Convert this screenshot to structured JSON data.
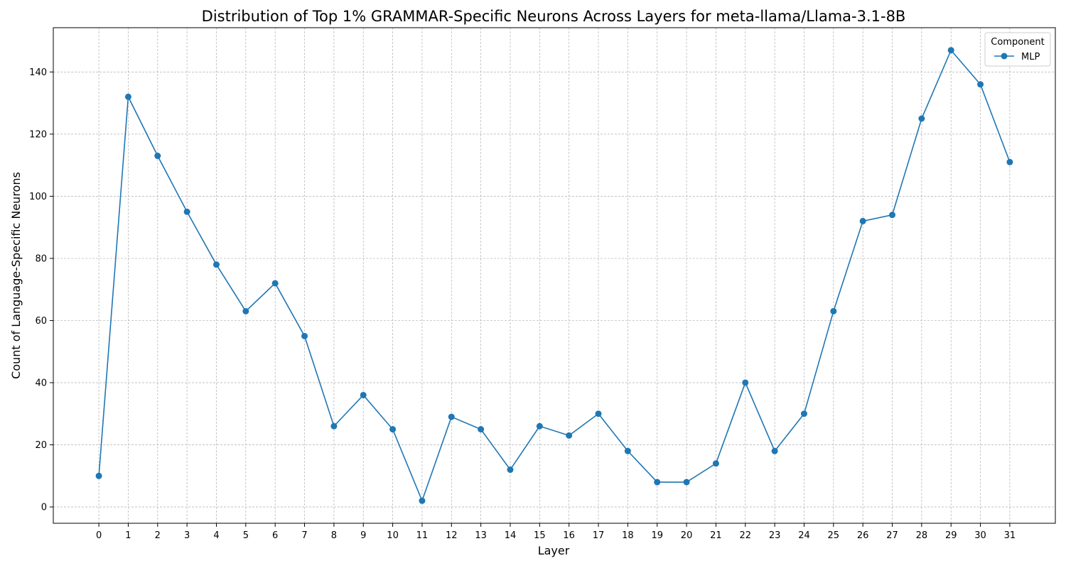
{
  "chart_data": {
    "type": "line",
    "title": "Distribution of Top 1% GRAMMAR-Specific Neurons Across Layers for meta-llama/Llama-3.1-8B",
    "xlabel": "Layer",
    "ylabel": "Count of Language-Specific Neurons",
    "x": [
      0,
      1,
      2,
      3,
      4,
      5,
      6,
      7,
      8,
      9,
      10,
      11,
      12,
      13,
      14,
      15,
      16,
      17,
      18,
      19,
      20,
      21,
      22,
      23,
      24,
      25,
      26,
      27,
      28,
      29,
      30,
      31
    ],
    "series": [
      {
        "name": "MLP",
        "color": "#1f77b4",
        "marker": "circle",
        "values": [
          10,
          132,
          113,
          95,
          78,
          63,
          72,
          55,
          26,
          36,
          25,
          2,
          29,
          25,
          12,
          26,
          23,
          30,
          18,
          8,
          8,
          14,
          40,
          18,
          30,
          63,
          92,
          94,
          125,
          147,
          136,
          111
        ]
      }
    ],
    "yticks": [
      0,
      20,
      40,
      60,
      80,
      100,
      120,
      140
    ],
    "xlim": [
      -1.55,
      32.55
    ],
    "ylim": [
      -5.25,
      154.25
    ],
    "grid": true,
    "legend": {
      "title": "Component",
      "placement": "top-right"
    }
  }
}
